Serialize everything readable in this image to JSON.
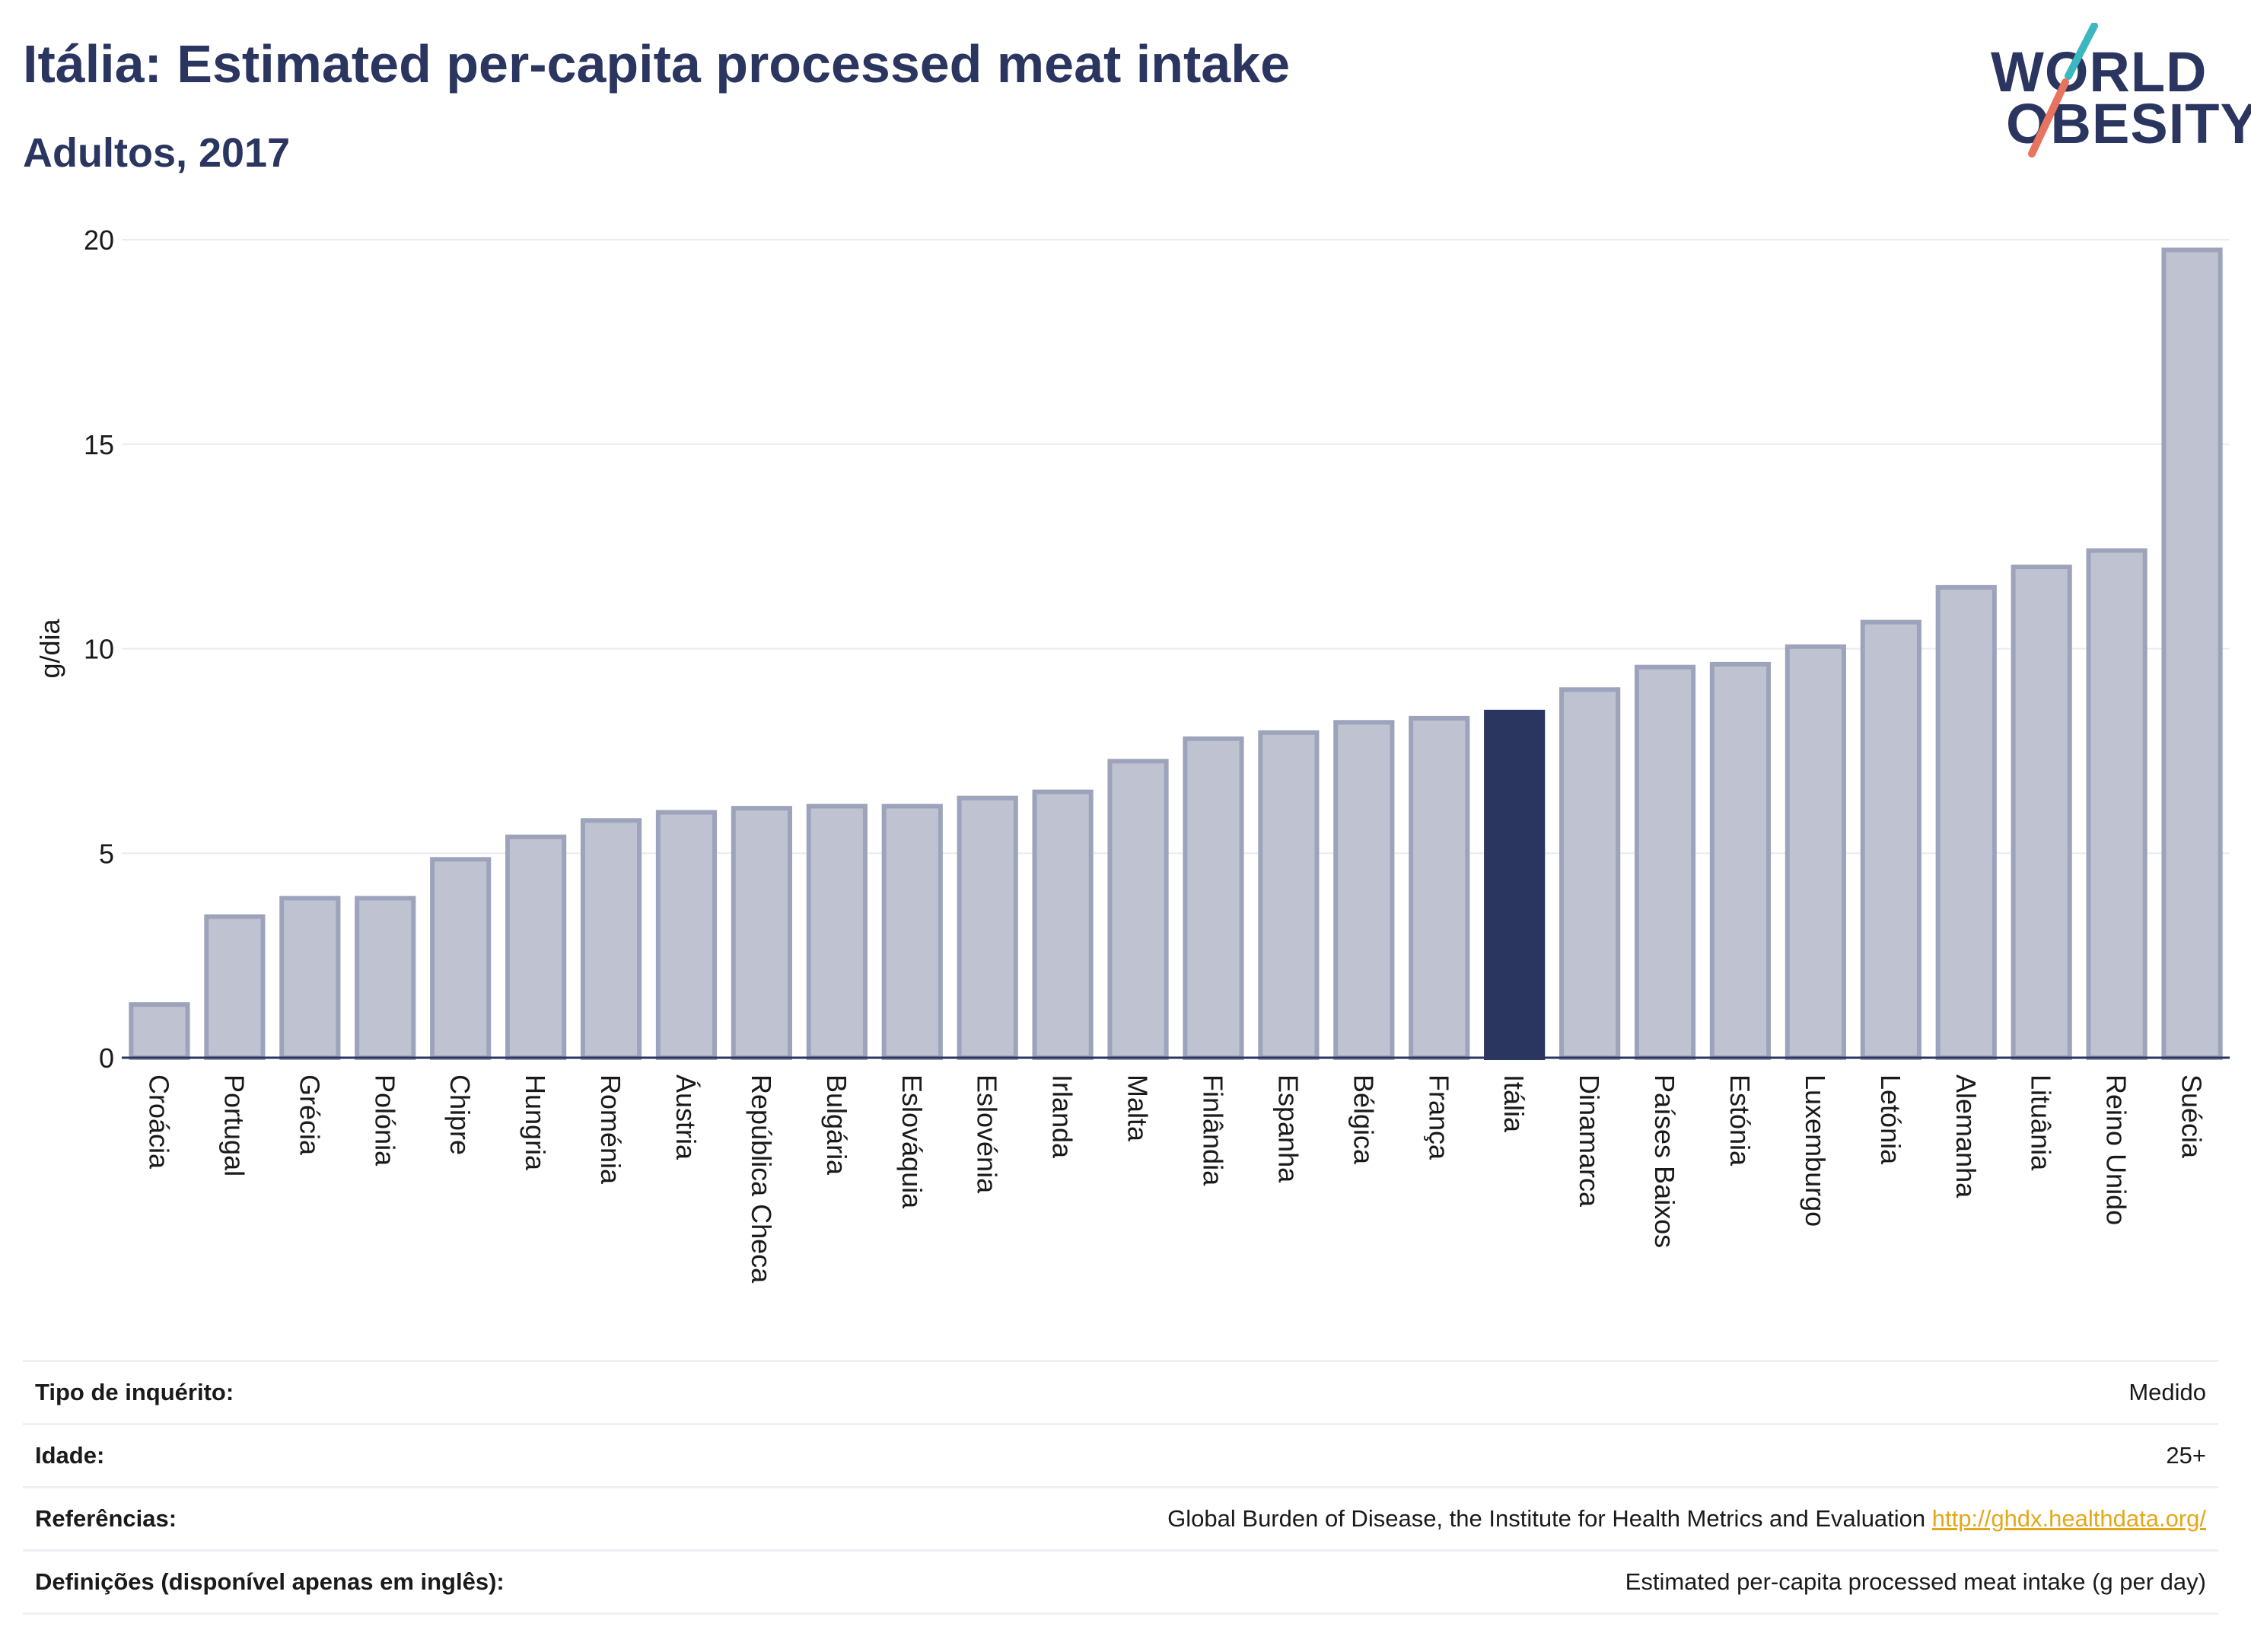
{
  "header": {
    "title": "Itália: Estimated per-capita processed meat intake",
    "subtitle": "Adultos, 2017"
  },
  "logo": {
    "line1": "WORLD",
    "line2": "OBESITY"
  },
  "colors": {
    "bar_fill": "#bfc3d1",
    "bar_stroke": "#9da3bb",
    "highlight": "#2a3560",
    "grid": "#e8ebf0",
    "text": "#1a1a1a",
    "logo_teal": "#3bb7c1",
    "logo_coral": "#e8735f",
    "link": "#e3a81a"
  },
  "chart_data": {
    "type": "bar",
    "ylabel": "g/dia",
    "ylim": [
      0,
      20
    ],
    "yticks": [
      0,
      5,
      10,
      15,
      20
    ],
    "grid": true,
    "highlight": "Itália",
    "categories": [
      "Croácia",
      "Portugal",
      "Grécia",
      "Polónia",
      "Chipre",
      "Hungria",
      "Roménia",
      "Áustria",
      "República Checa",
      "Bulgária",
      "Eslováquia",
      "Eslovénia",
      "Irlanda",
      "Malta",
      "Finlândia",
      "Espanha",
      "Bélgica",
      "França",
      "Itália",
      "Dinamarca",
      "Países Baixos",
      "Estónia",
      "Luxemburgo",
      "Letónia",
      "Alemanha",
      "Lituânia",
      "Reino Unido",
      "Suécia"
    ],
    "values": [
      1.3,
      3.45,
      3.9,
      3.9,
      4.85,
      5.4,
      5.8,
      6.0,
      6.1,
      6.15,
      6.15,
      6.35,
      6.5,
      7.25,
      7.8,
      7.95,
      8.2,
      8.3,
      8.45,
      9.0,
      9.55,
      9.62,
      10.05,
      10.65,
      11.5,
      12.0,
      12.4,
      19.75
    ]
  },
  "info": {
    "rows": [
      {
        "label": "Tipo de inquérito:",
        "value": "Medido"
      },
      {
        "label": "Idade:",
        "value": "25+"
      },
      {
        "label": "Referências:",
        "value": "Global Burden of Disease, the Institute for Health Metrics and Evaluation",
        "link": "http://ghdx.healthdata.org/"
      },
      {
        "label": "Definições (disponível apenas em inglês):",
        "value": "Estimated per-capita processed meat intake (g per day)"
      }
    ]
  }
}
